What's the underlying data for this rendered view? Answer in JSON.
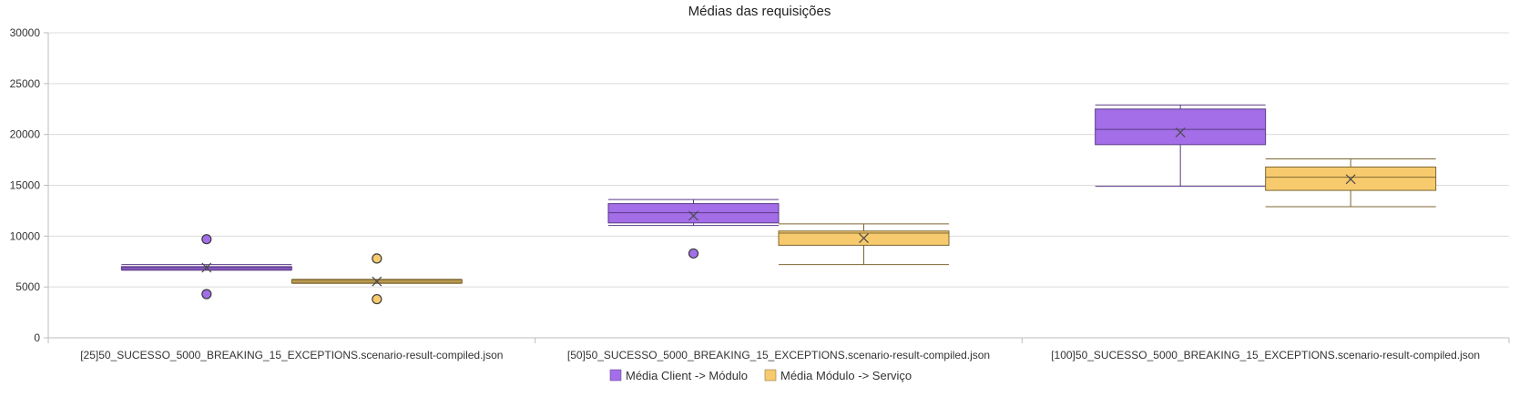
{
  "chart_data": {
    "type": "boxplot",
    "title": "Médias das requisições",
    "xlabel": "",
    "ylabel": "",
    "ylim": [
      0,
      30000
    ],
    "yticks": [
      0,
      5000,
      10000,
      15000,
      20000,
      25000,
      30000
    ],
    "grid": true,
    "legend_position": "bottom-center",
    "categories": [
      "[25]50_SUCESSO_5000_BREAKING_15_EXCEPTIONS.scenario-result-compiled.json",
      "[50]50_SUCESSO_5000_BREAKING_15_EXCEPTIONS.scenario-result-compiled.json",
      "[100]50_SUCESSO_5000_BREAKING_15_EXCEPTIONS.scenario-result-compiled.json"
    ],
    "series": [
      {
        "name": "Média Client -> Módulo",
        "color": "#a36ee8",
        "stroke": "#5b3a86",
        "boxes": [
          {
            "min": 6650,
            "q1": 6700,
            "median": 6900,
            "q3": 7000,
            "max": 7200,
            "mean": 6900,
            "outliers": [
              9700,
              4300
            ]
          },
          {
            "min": 11050,
            "q1": 11300,
            "median": 12300,
            "q3": 13200,
            "max": 13600,
            "mean": 12000,
            "outliers": [
              8300
            ]
          },
          {
            "min": 14900,
            "q1": 19000,
            "median": 20500,
            "q3": 22500,
            "max": 22900,
            "mean": 20200,
            "outliers": []
          }
        ]
      },
      {
        "name": "Média Módulo -> Serviço",
        "color": "#f7ca6d",
        "stroke": "#7d6733",
        "boxes": [
          {
            "min": 5350,
            "q1": 5400,
            "median": 5550,
            "q3": 5700,
            "max": 5750,
            "mean": 5550,
            "outliers": [
              7800,
              3800
            ]
          },
          {
            "min": 7200,
            "q1": 9100,
            "median": 10300,
            "q3": 10500,
            "max": 11200,
            "mean": 9800,
            "outliers": []
          },
          {
            "min": 12900,
            "q1": 14500,
            "median": 15800,
            "q3": 16800,
            "max": 17600,
            "mean": 15600,
            "outliers": []
          }
        ]
      }
    ]
  }
}
